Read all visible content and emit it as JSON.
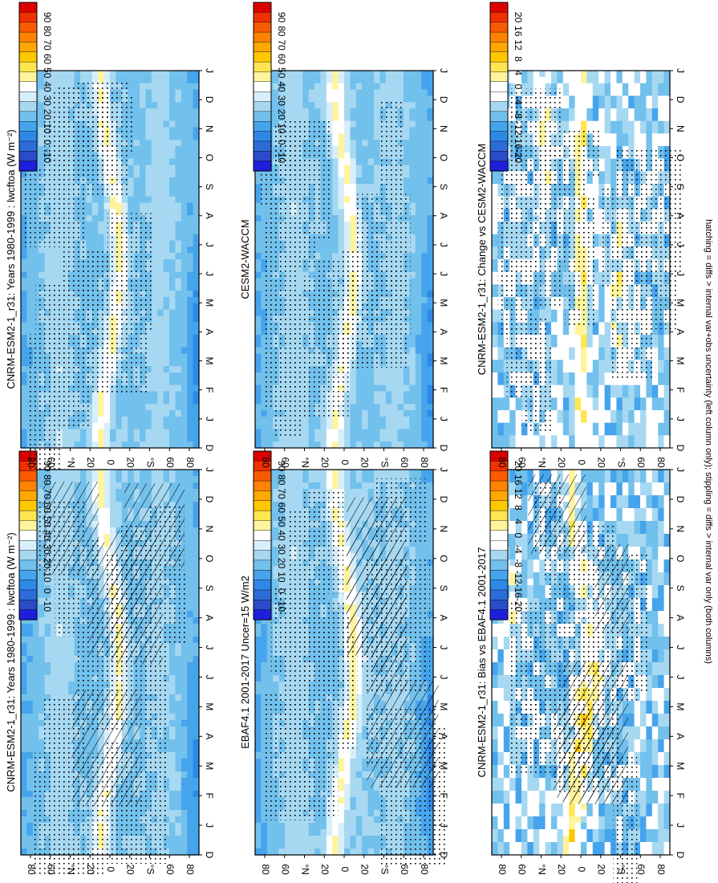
{
  "footer_note": "hatching = diffs > internal var+obs uncertainty (left column only); stippling = diffs > internal var only (both columns)",
  "palettes": {
    "abs": [
      "#dc0000",
      "#f03000",
      "#f85a00",
      "#ff8200",
      "#ffa800",
      "#ffc800",
      "#ffe650",
      "#fff49c",
      "#ffffff",
      "#d8eefa",
      "#a6d8f2",
      "#72c0ec",
      "#46a4ec",
      "#2e88e6",
      "#2c6cd8",
      "#2a4cc8",
      "#1e1edc"
    ],
    "diff": [
      "#dc0000",
      "#f03000",
      "#f85a00",
      "#ff8200",
      "#ffa800",
      "#ffc800",
      "#ffe650",
      "#fff49c",
      "#ffffff",
      "#ffffff",
      "#a6d8f2",
      "#72c0ec",
      "#46a4ec",
      "#2e88e6",
      "#2c6cd8",
      "#2a4cc8",
      "#1e1edc"
    ]
  },
  "chart_data": [
    {
      "panel": "top-left",
      "type": "heatmap",
      "title": "CNRM-ESM2-1_r31: Years 1980-1999 : lwcftoa (W m⁻²)",
      "x": [
        "D",
        "J",
        "F",
        "M",
        "A",
        "M",
        "J",
        "J",
        "A",
        "S",
        "O",
        "N",
        "D",
        "J"
      ],
      "y_ticks": [
        "80",
        "60",
        "°N",
        "20",
        "0",
        "20",
        "°S",
        "60",
        "80"
      ],
      "colorbar_labels": [
        "90",
        "80",
        "70",
        "60",
        "50",
        "40",
        "30",
        "20",
        "10",
        "0",
        "-10"
      ],
      "palette": "abs",
      "field": "abs_model",
      "hatching": true,
      "stippling": true
    },
    {
      "panel": "top-right",
      "type": "heatmap",
      "title": "CNRM-ESM2-1_r31: Years 1980-1999 : lwcftoa (W m⁻²)",
      "x": [
        "D",
        "J",
        "F",
        "M",
        "A",
        "M",
        "J",
        "J",
        "A",
        "S",
        "O",
        "N",
        "D",
        "J"
      ],
      "y_ticks": [
        "80",
        "60",
        "°N",
        "20",
        "0",
        "20",
        "°S",
        "60",
        "80"
      ],
      "colorbar_labels": [
        "90",
        "80",
        "70",
        "60",
        "50",
        "40",
        "30",
        "20",
        "10",
        "0",
        "-10"
      ],
      "palette": "abs",
      "field": "abs_model",
      "hatching": false,
      "stippling": true
    },
    {
      "panel": "middle-left",
      "type": "heatmap",
      "title": "EBAF4.1 2001-2017 Uncer=15 W/m2",
      "x": [
        "D",
        "J",
        "F",
        "M",
        "A",
        "M",
        "J",
        "J",
        "A",
        "S",
        "O",
        "N",
        "D",
        "J"
      ],
      "y_ticks": [
        "80",
        "60",
        "°N",
        "20",
        "0",
        "20",
        "°S",
        "60",
        "80"
      ],
      "colorbar_labels": [
        "90",
        "80",
        "70",
        "60",
        "50",
        "40",
        "30",
        "20",
        "10",
        "0",
        "-10"
      ],
      "palette": "abs",
      "field": "abs_obs",
      "hatching": true,
      "stippling": true
    },
    {
      "panel": "middle-right",
      "type": "heatmap",
      "title": "CESM2-WACCM",
      "x": [
        "D",
        "J",
        "F",
        "M",
        "A",
        "M",
        "J",
        "J",
        "A",
        "S",
        "O",
        "N",
        "D",
        "J"
      ],
      "y_ticks": [
        "80",
        "60",
        "°N",
        "20",
        "0",
        "20",
        "°S",
        "60",
        "80"
      ],
      "colorbar_labels": [
        "90",
        "80",
        "70",
        "60",
        "50",
        "40",
        "30",
        "20",
        "10",
        "0",
        "-10"
      ],
      "palette": "abs",
      "field": "abs_ref",
      "hatching": false,
      "stippling": true
    },
    {
      "panel": "bottom-left",
      "type": "heatmap",
      "title": "CNRM-ESM2-1_r31: Bias vs EBAF4.1 2001-2017",
      "x": [
        "D",
        "J",
        "F",
        "M",
        "A",
        "M",
        "J",
        "J",
        "A",
        "S",
        "O",
        "N",
        "D",
        "J"
      ],
      "y_ticks": [
        "80",
        "60",
        "°N",
        "20",
        "0",
        "20",
        "°S",
        "60",
        "80"
      ],
      "colorbar_labels": [
        "20",
        "16",
        "12",
        "8",
        "4",
        "0",
        "-4",
        "-8",
        "-12",
        "-16",
        "-20"
      ],
      "palette": "diff",
      "field": "diff_bias",
      "hatching": true,
      "stippling": true
    },
    {
      "panel": "bottom-right",
      "type": "heatmap",
      "title": "CNRM-ESM2-1_r31: Change vs CESM2-WACCM",
      "x": [
        "D",
        "J",
        "F",
        "M",
        "A",
        "M",
        "J",
        "J",
        "A",
        "S",
        "O",
        "N",
        "D",
        "J"
      ],
      "y_ticks": [
        "80",
        "60",
        "°N",
        "20",
        "0",
        "20",
        "°S",
        "60",
        "80"
      ],
      "colorbar_labels": [
        "20",
        "16",
        "12",
        "8",
        "4",
        "0",
        "-4",
        "-8",
        "-12",
        "-16",
        "-20"
      ],
      "palette": "diff",
      "field": "diff_change",
      "hatching": false,
      "stippling": true
    }
  ]
}
